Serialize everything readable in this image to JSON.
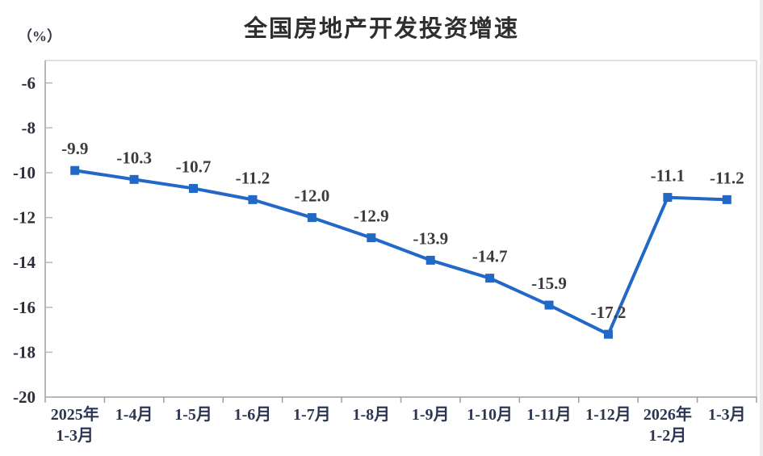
{
  "title": "全国房地产开发投资增速",
  "y_unit_label": "（%）",
  "chart_data": {
    "type": "line",
    "title": "全国房地产开发投资增速",
    "ylabel": "（%）",
    "series_color": "#2268c6",
    "label_color": "#3b3b3b",
    "tick_label_color": "#2b2e3a",
    "category_label_color": "#2c3653",
    "categories": [
      [
        "2025年",
        "1-3月"
      ],
      [
        "1-4月"
      ],
      [
        "1-5月"
      ],
      [
        "1-6月"
      ],
      [
        "1-7月"
      ],
      [
        "1-8月"
      ],
      [
        "1-9月"
      ],
      [
        "1-10月"
      ],
      [
        "1-11月"
      ],
      [
        "1-12月"
      ],
      [
        "2026年",
        "1-2月"
      ],
      [
        "1-3月"
      ]
    ],
    "values": [
      -9.9,
      -10.3,
      -10.7,
      -11.2,
      -12.0,
      -12.9,
      -13.9,
      -14.7,
      -15.9,
      -17.2,
      -11.1,
      -11.2
    ],
    "point_labels": [
      "-9.9",
      "-10.3",
      "-10.7",
      "-11.2",
      "-12.0",
      "-12.9",
      "-13.9",
      "-14.7",
      "-15.9",
      "-17.2",
      "-11.1",
      "-11.2"
    ],
    "y_ticks": [
      -6,
      -8,
      -10,
      -12,
      -14,
      -16,
      -18,
      -20
    ],
    "y_tick_labels": [
      "-6",
      "-8",
      "-10",
      "-12",
      "-14",
      "-16",
      "-18",
      "-20"
    ],
    "ylim_top": -5,
    "ylim_bottom": -20,
    "grid": false,
    "legend": "none",
    "marker": "square"
  }
}
